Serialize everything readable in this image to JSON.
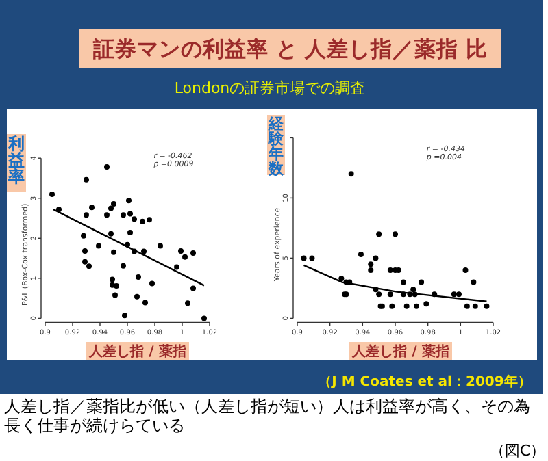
{
  "chart_data": [
    {
      "type": "scatter",
      "title": "証券マンの利益率 と 人差し指／薬指 比",
      "subtitle": "Londonの証券市場での調査",
      "xlabel": "人差し指 / 薬指",
      "ylabel": "P&L (Box-Cox transformed)",
      "annotations": [
        "利益率",
        "r = -0.462",
        "p =0.0009"
      ],
      "marker": "circle",
      "xlim": [
        0.9,
        1.02
      ],
      "ylim": [
        0,
        4
      ],
      "xticks": [
        0.9,
        0.92,
        0.94,
        0.96,
        0.98,
        1,
        1.02
      ],
      "yticks": [
        0,
        1,
        2,
        3,
        4
      ],
      "series": [
        {
          "type": "scatter",
          "color": "#000000",
          "x": [
            0.905,
            0.91,
            0.93,
            0.945,
            0.93,
            0.934,
            0.928,
            0.929,
            0.929,
            0.932,
            0.939,
            0.945,
            0.948,
            0.95,
            0.948,
            0.95,
            0.949,
            0.949,
            0.952,
            0.951,
            0.957,
            0.957,
            0.961,
            0.962,
            0.965,
            0.962,
            0.96,
            0.965,
            0.971,
            0.976,
            0.972,
            0.968,
            0.967,
            0.973,
            0.978,
            0.958,
            0.984,
            0.996,
            0.999,
            1.002,
            1.008,
            1.008,
            1.004,
            1.016
          ],
          "values": [
            3.1,
            2.72,
            3.46,
            3.78,
            2.58,
            2.77,
            2.06,
            1.68,
            1.41,
            1.3,
            1.81,
            2.58,
            2.75,
            2.86,
            2.11,
            1.65,
            0.97,
            0.83,
            0.81,
            0.58,
            1.31,
            2.58,
            2.94,
            2.61,
            2.48,
            2.14,
            1.84,
            1.67,
            2.42,
            2.46,
            1.67,
            1.03,
            0.54,
            0.39,
            0.87,
            0.07,
            1.81,
            1.28,
            1.68,
            1.53,
            1.63,
            0.75,
            0.38,
            0
          ]
        },
        {
          "type": "line",
          "marker": "none",
          "color": "#000000",
          "x": [
            0.906,
            1.016
          ],
          "values": [
            2.72,
            0.82
          ]
        }
      ]
    },
    {
      "type": "scatter",
      "xlabel": "人差し指 / 薬指",
      "ylabel": "Years of experience",
      "annotations": [
        "経験年数",
        "r = -0.434",
        "p =0.004",
        "（J M Coates et al：2009年）",
        "人差し指／薬指比が低い（人差し指が短い）人は利益率が高く、その為長く仕事が続けらている",
        "（図C）"
      ],
      "marker": "circle",
      "xlim": [
        0.9,
        1.02
      ],
      "ylim": [
        0,
        15
      ],
      "xticks": [
        0.9,
        0.92,
        0.94,
        0.96,
        0.98,
        1,
        1.02
      ],
      "yticks": [
        0,
        5,
        10,
        {
          "value": 15,
          "label": null
        }
      ],
      "series": [
        {
          "type": "scatter",
          "color": "#000000",
          "x": [
            0.904,
            0.909,
            0.927,
            0.93,
            0.932,
            0.929,
            0.93,
            0.933,
            0.939,
            0.945,
            0.945,
            0.948,
            0.948,
            0.95,
            0.95,
            0.951,
            0.952,
            0.957,
            0.957,
            0.958,
            0.96,
            0.96,
            0.962,
            0.965,
            0.965,
            0.967,
            0.969,
            0.971,
            0.972,
            0.973,
            0.976,
            0.979,
            0.984,
            0.996,
            0.999,
            1.003,
            1.004,
            1.008,
            1.009,
            1.016
          ],
          "values": [
            5,
            5,
            3.3,
            3,
            3,
            2,
            2,
            12,
            5.3,
            4.5,
            4,
            5,
            2.4,
            2,
            7,
            1,
            1,
            2,
            4,
            1,
            7,
            4,
            4,
            3,
            2,
            1,
            2,
            2.4,
            2,
            1,
            3,
            1.2,
            2,
            2,
            2,
            4,
            1,
            3,
            1,
            1
          ]
        },
        {
          "type": "line",
          "marker": "none",
          "color": "#000000",
          "x": [
            0.904,
            0.9275,
            0.961,
            1.016
          ],
          "values": [
            4.4,
            3.0,
            2.2,
            1.4
          ]
        }
      ]
    }
  ]
}
